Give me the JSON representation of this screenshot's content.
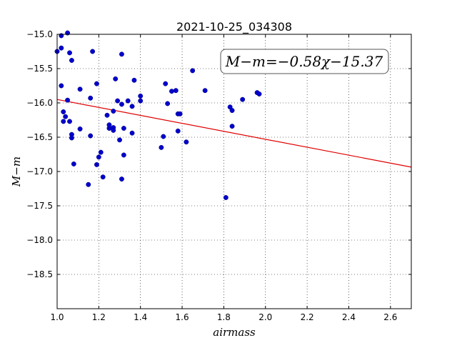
{
  "chart_data": {
    "type": "scatter",
    "title": "2021-10-25_034308",
    "xlabel": "airmass",
    "ylabel": "M−m",
    "xlim": [
      1.0,
      2.7
    ],
    "ylim": [
      -15.0,
      -19.0
    ],
    "y_inverted": true,
    "grid": true,
    "x_ticks": [
      "1.0",
      "1.2",
      "1.4",
      "1.6",
      "1.8",
      "2.0",
      "2.2",
      "2.4",
      "2.6"
    ],
    "y_ticks": [
      "−15.0",
      "−15.5",
      "−16.0",
      "−16.5",
      "−17.0",
      "−17.5",
      "−18.0",
      "−18.5"
    ],
    "point_color": "#0000cc",
    "fit_color": "#e00000",
    "annotation": "M−m=−0.58χ−15.37",
    "fit": {
      "slope": -0.58,
      "intercept": -15.37
    },
    "points": [
      {
        "x": 1.0,
        "y": -15.25
      },
      {
        "x": 1.02,
        "y": -15.02
      },
      {
        "x": 1.02,
        "y": -15.2
      },
      {
        "x": 1.05,
        "y": -14.98
      },
      {
        "x": 1.06,
        "y": -15.27
      },
      {
        "x": 1.07,
        "y": -15.38
      },
      {
        "x": 1.17,
        "y": -15.25
      },
      {
        "x": 1.31,
        "y": -15.29
      },
      {
        "x": 1.02,
        "y": -15.75
      },
      {
        "x": 1.11,
        "y": -15.8
      },
      {
        "x": 1.19,
        "y": -15.72
      },
      {
        "x": 1.28,
        "y": -15.65
      },
      {
        "x": 1.37,
        "y": -15.67
      },
      {
        "x": 1.52,
        "y": -15.72
      },
      {
        "x": 1.55,
        "y": -15.83
      },
      {
        "x": 1.57,
        "y": -15.82
      },
      {
        "x": 1.65,
        "y": -15.53
      },
      {
        "x": 1.71,
        "y": -15.82
      },
      {
        "x": 1.96,
        "y": -15.85
      },
      {
        "x": 1.97,
        "y": -15.87
      },
      {
        "x": 1.05,
        "y": -15.96
      },
      {
        "x": 1.16,
        "y": -15.93
      },
      {
        "x": 1.29,
        "y": -15.97
      },
      {
        "x": 1.31,
        "y": -16.02
      },
      {
        "x": 1.34,
        "y": -15.97
      },
      {
        "x": 1.36,
        "y": -16.05
      },
      {
        "x": 1.4,
        "y": -15.9
      },
      {
        "x": 1.4,
        "y": -15.97
      },
      {
        "x": 1.53,
        "y": -16.01
      },
      {
        "x": 1.89,
        "y": -15.95
      },
      {
        "x": 1.03,
        "y": -16.13
      },
      {
        "x": 1.04,
        "y": -16.2
      },
      {
        "x": 1.03,
        "y": -16.27
      },
      {
        "x": 1.06,
        "y": -16.27
      },
      {
        "x": 1.24,
        "y": -16.18
      },
      {
        "x": 1.27,
        "y": -16.12
      },
      {
        "x": 1.58,
        "y": -16.16
      },
      {
        "x": 1.59,
        "y": -16.16
      },
      {
        "x": 1.83,
        "y": -16.06
      },
      {
        "x": 1.84,
        "y": -16.11
      },
      {
        "x": 1.07,
        "y": -16.46
      },
      {
        "x": 1.07,
        "y": -16.51
      },
      {
        "x": 1.11,
        "y": -16.38
      },
      {
        "x": 1.16,
        "y": -16.48
      },
      {
        "x": 1.25,
        "y": -16.37
      },
      {
        "x": 1.25,
        "y": -16.32
      },
      {
        "x": 1.27,
        "y": -16.36
      },
      {
        "x": 1.27,
        "y": -16.4
      },
      {
        "x": 1.3,
        "y": -16.54
      },
      {
        "x": 1.32,
        "y": -16.37
      },
      {
        "x": 1.36,
        "y": -16.44
      },
      {
        "x": 1.5,
        "y": -16.65
      },
      {
        "x": 1.51,
        "y": -16.49
      },
      {
        "x": 1.58,
        "y": -16.41
      },
      {
        "x": 1.62,
        "y": -16.57
      },
      {
        "x": 1.84,
        "y": -16.34
      },
      {
        "x": 1.08,
        "y": -16.89
      },
      {
        "x": 1.19,
        "y": -16.9
      },
      {
        "x": 1.2,
        "y": -16.79
      },
      {
        "x": 1.21,
        "y": -16.72
      },
      {
        "x": 1.32,
        "y": -16.76
      },
      {
        "x": 1.15,
        "y": -17.19
      },
      {
        "x": 1.22,
        "y": -17.08
      },
      {
        "x": 1.31,
        "y": -17.11
      },
      {
        "x": 1.81,
        "y": -17.38
      }
    ]
  }
}
